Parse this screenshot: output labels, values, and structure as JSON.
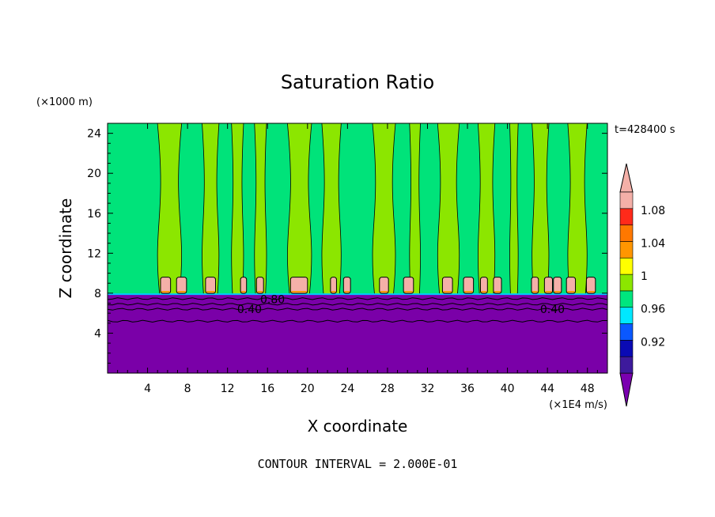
{
  "chart_data": {
    "type": "heatmap",
    "title": "Saturation Ratio",
    "xlabel": "X coordinate",
    "ylabel": "Z coordinate",
    "x_unit": "(×1E4 m/s)",
    "y_unit": "(×1000 m)",
    "time_label": "t=428400 s",
    "footer": "CONTOUR INTERVAL = 2.000E-01",
    "xlim": [
      0,
      50
    ],
    "ylim": [
      0,
      25
    ],
    "x_ticks": [
      4,
      8,
      12,
      16,
      20,
      24,
      28,
      32,
      36,
      40,
      44,
      48
    ],
    "y_ticks": [
      4,
      8,
      12,
      16,
      20,
      24
    ],
    "contour_labels": [
      {
        "text": "0.80",
        "x": 16.5,
        "y": 7.4
      },
      {
        "text": "0.40",
        "x": 14.2,
        "y": 6.4
      },
      {
        "text": "0.40",
        "x": 44.5,
        "y": 6.4
      }
    ],
    "colorbar": {
      "colors": [
        "#3d1a9c",
        "#0a0ab4",
        "#0a58ff",
        "#00e8ff",
        "#00e67e",
        "#8ce600",
        "#ffff00",
        "#ff9600",
        "#ff7800",
        "#ff2a1a",
        "#f4b0a8"
      ],
      "labels": [
        "0.92",
        "0.96",
        "1",
        "1.04",
        "1.08"
      ],
      "under_color": "#7a00b0",
      "over_color": "#f4b0a8"
    },
    "background_colors": {
      "subsaturated": "#7a00a8",
      "saturated": "#00e37a",
      "supersaturated": "#8ce600",
      "cloud_base": "#f4b0a8"
    },
    "boundary_layer_top": 7.9,
    "supersaturated_columns": [
      [
        5.2,
        7.2
      ],
      [
        9.6,
        11.0
      ],
      [
        12.5,
        13.5
      ],
      [
        14.8,
        15.8
      ],
      [
        18.2,
        20.2
      ],
      [
        21.6,
        23.2
      ],
      [
        26.7,
        28.6
      ],
      [
        30.3,
        31.2
      ],
      [
        33.2,
        35.0
      ],
      [
        37.2,
        38.6
      ],
      [
        40.3,
        41.0
      ],
      [
        42.6,
        44.0
      ],
      [
        46.2,
        47.8
      ]
    ],
    "cloud_cells": [
      [
        5.3,
        6.3
      ],
      [
        6.9,
        7.9
      ],
      [
        9.8,
        10.8
      ],
      [
        13.3,
        13.9
      ],
      [
        14.9,
        15.6
      ],
      [
        18.3,
        20.0
      ],
      [
        22.3,
        22.9
      ],
      [
        23.6,
        24.3
      ],
      [
        27.2,
        28.1
      ],
      [
        29.6,
        30.6
      ],
      [
        33.5,
        34.5
      ],
      [
        35.6,
        36.6
      ],
      [
        37.3,
        38.0
      ],
      [
        38.6,
        39.4
      ],
      [
        42.4,
        43.1
      ],
      [
        43.7,
        44.5
      ],
      [
        44.6,
        45.4
      ],
      [
        45.9,
        46.8
      ],
      [
        47.9,
        48.8
      ]
    ]
  }
}
